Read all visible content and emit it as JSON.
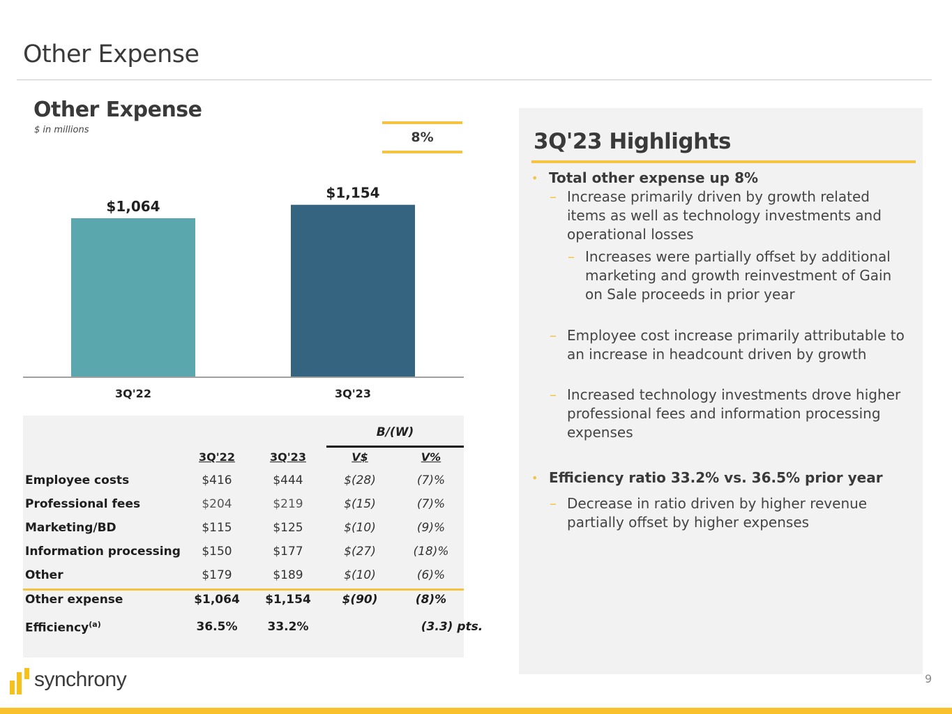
{
  "page": {
    "title": "Other Expense",
    "page_number": "9",
    "brand": "synchrony"
  },
  "chart_section": {
    "title": "Other Expense",
    "subtitle": "$ in millions",
    "growth_badge": "8%"
  },
  "chart_data": {
    "type": "bar",
    "title": "Other Expense",
    "subtitle": "$ in millions",
    "categories": [
      "3Q'22",
      "3Q'23"
    ],
    "values": [
      1064,
      1154
    ],
    "data_labels": [
      "$1,064",
      "$1,154"
    ],
    "colors": [
      "#5aa8ae",
      "#356480"
    ],
    "xlabel": "",
    "ylabel": "",
    "ylim": [
      0,
      1400
    ],
    "grid": false,
    "legend": "none",
    "annotation": "8%"
  },
  "table": {
    "group_header": "B/(W)",
    "columns": [
      "3Q'22",
      "3Q'23",
      "V$",
      "V%"
    ],
    "rows": [
      {
        "label": "Employee costs",
        "values": [
          "$416",
          "$444",
          "$(28)",
          "(7)%"
        ]
      },
      {
        "label": "Professional fees",
        "values": [
          "$204",
          "$219",
          "$(15)",
          "(7)%"
        ]
      },
      {
        "label": "Marketing/BD",
        "values": [
          "$115",
          "$125",
          "$(10)",
          "(9)%"
        ]
      },
      {
        "label": "Information processing",
        "values": [
          "$150",
          "$177",
          "$(27)",
          "(18)%"
        ]
      },
      {
        "label": "Other",
        "values": [
          "$179",
          "$189",
          "$(10)",
          "(6)%"
        ]
      }
    ],
    "total": {
      "label": "Other expense",
      "values": [
        "$1,064",
        "$1,154",
        "$(90)",
        "(8)%"
      ]
    },
    "efficiency": {
      "label": "Efficiency",
      "footnote": "(a)",
      "values": [
        "36.5%",
        "33.2%",
        "",
        "(3.3) pts."
      ]
    }
  },
  "highlights": {
    "title": "3Q'23 Highlights",
    "items": [
      {
        "level": 1,
        "text": "Total other expense up 8%"
      },
      {
        "level": 2,
        "text": "Increase primarily driven by growth related items as well as technology investments and operational losses"
      },
      {
        "level": 3,
        "text": "Increases were partially offset by additional marketing and growth reinvestment of Gain on Sale proceeds in prior year"
      },
      {
        "level": 2,
        "text": "Employee cost increase primarily attributable to an increase in headcount driven by growth"
      },
      {
        "level": 2,
        "text": "Increased technology investments drove higher professional fees and information processing expenses"
      },
      {
        "level": 1,
        "text": "Efficiency ratio 33.2% vs. 36.5% prior year"
      },
      {
        "level": 2,
        "text": "Decrease in ratio driven by higher revenue partially offset by higher expenses"
      }
    ]
  },
  "theme": {
    "accent": "#f5c342",
    "bar_prior": "#5aa8ae",
    "bar_current": "#356480",
    "panel_bg": "#f2f2f2"
  }
}
